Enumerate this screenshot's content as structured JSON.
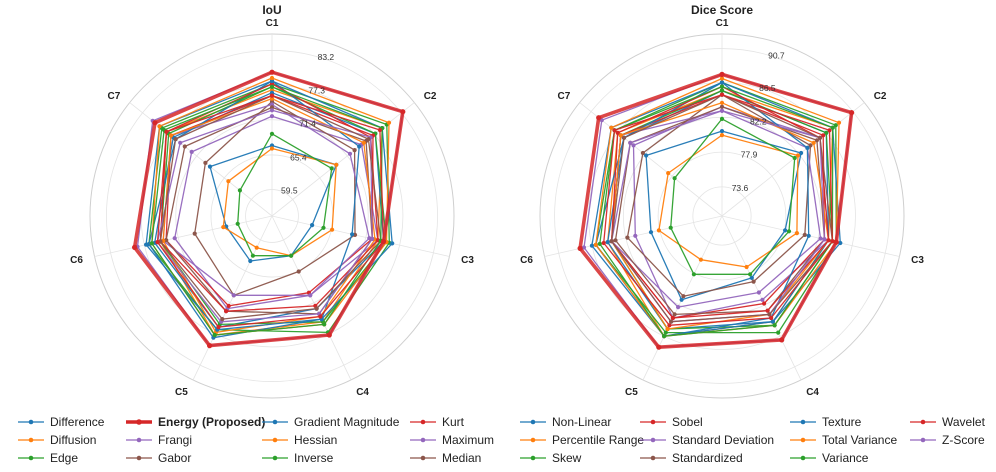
{
  "chart_data": [
    {
      "type": "radar",
      "title": "IoU",
      "axes": [
        "C1",
        "C2",
        "C3",
        "C4",
        "C5",
        "C6",
        "C7"
      ],
      "ticks": [
        59.5,
        65.4,
        71.4,
        77.3,
        83.2
      ],
      "range": [
        55.0,
        86.0
      ],
      "series": [
        {
          "name": "Difference",
          "values": [
            67.0,
            69.0,
            62.0,
            62.5,
            63.5,
            63.0,
            68.5
          ]
        },
        {
          "name": "Diffusion",
          "values": [
            76.5,
            79.0,
            73.5,
            75.0,
            77.5,
            74.5,
            78.0
          ]
        },
        {
          "name": "Edge",
          "values": [
            77.5,
            80.0,
            75.5,
            77.0,
            76.5,
            76.5,
            79.0
          ]
        },
        {
          "name": "Energy (Proposed)",
          "values": [
            79.5,
            83.5,
            74.5,
            77.5,
            79.5,
            79.0,
            80.5
          ]
        },
        {
          "name": "Frangi",
          "values": [
            72.0,
            74.5,
            73.5,
            70.0,
            72.5,
            72.0,
            72.5
          ]
        },
        {
          "name": "Gabor",
          "values": [
            74.5,
            73.0,
            69.5,
            65.5,
            70.0,
            68.5,
            69.5
          ]
        },
        {
          "name": "Gradient Magnitude",
          "values": [
            76.0,
            77.5,
            74.5,
            72.5,
            76.0,
            75.5,
            76.5
          ]
        },
        {
          "name": "Hessian",
          "values": [
            66.5,
            69.0,
            65.5,
            62.5,
            61.0,
            63.5,
            64.5
          ]
        },
        {
          "name": "Inverse",
          "values": [
            77.0,
            77.5,
            75.0,
            75.0,
            75.5,
            74.5,
            77.5
          ]
        },
        {
          "name": "Kurt",
          "values": [
            75.5,
            77.0,
            72.5,
            69.5,
            72.0,
            73.5,
            77.0
          ]
        },
        {
          "name": "Maximum",
          "values": [
            74.0,
            72.0,
            72.0,
            70.0,
            70.0,
            74.0,
            77.0
          ]
        },
        {
          "name": "Median",
          "values": [
            73.5,
            75.5,
            72.5,
            73.5,
            73.0,
            73.5,
            74.0
          ]
        },
        {
          "name": "Non-Linear",
          "values": [
            78.0,
            74.0,
            69.0,
            74.5,
            78.0,
            76.5,
            76.0
          ]
        },
        {
          "name": "Percentile Range",
          "values": [
            75.0,
            75.0,
            73.0,
            74.0,
            77.0,
            74.0,
            77.0
          ]
        },
        {
          "name": "Skew",
          "values": [
            69.0,
            68.0,
            64.0,
            62.5,
            62.5,
            61.0,
            62.0
          ]
        },
        {
          "name": "Sobel",
          "values": [
            77.5,
            76.5,
            73.5,
            72.0,
            73.0,
            74.5,
            78.0
          ]
        },
        {
          "name": "Standard Deviation",
          "values": [
            73.0,
            76.5,
            72.5,
            73.5,
            75.0,
            75.0,
            75.0
          ]
        },
        {
          "name": "Standardized",
          "values": [
            75.5,
            76.0,
            74.0,
            72.5,
            74.5,
            74.5,
            76.0
          ]
        },
        {
          "name": "Texture",
          "values": [
            78.0,
            79.0,
            76.0,
            74.5,
            76.5,
            77.0,
            79.5
          ]
        },
        {
          "name": "Total Variance",
          "values": [
            78.5,
            80.5,
            75.0,
            75.5,
            77.5,
            76.0,
            79.5
          ]
        },
        {
          "name": "Variance",
          "values": [
            77.0,
            79.0,
            74.0,
            75.5,
            77.5,
            76.0,
            78.5
          ]
        },
        {
          "name": "Wavelet",
          "values": [
            75.5,
            78.5,
            74.5,
            74.0,
            76.0,
            75.0,
            78.0
          ]
        },
        {
          "name": "Z-Score",
          "values": [
            79.5,
            83.5,
            74.5,
            77.5,
            79.5,
            78.5,
            81.0
          ]
        }
      ]
    },
    {
      "type": "radar",
      "title": "Dice Score",
      "axes": [
        "C1",
        "C2",
        "C3",
        "C4",
        "C5",
        "C6",
        "C7"
      ],
      "ticks": [
        73.6,
        77.9,
        82.2,
        86.5,
        90.7
      ],
      "range": [
        70.0,
        92.5
      ],
      "series": [
        {
          "name": "Difference",
          "values": [
            80.5,
            82.5,
            78.0,
            78.5,
            81.5,
            79.0,
            82.0
          ]
        },
        {
          "name": "Diffusion",
          "values": [
            85.5,
            87.5,
            83.5,
            84.5,
            86.5,
            84.5,
            86.5
          ]
        },
        {
          "name": "Edge",
          "values": [
            86.5,
            88.0,
            84.5,
            86.0,
            86.0,
            86.0,
            87.0
          ]
        },
        {
          "name": "Energy (Proposed)",
          "values": [
            87.5,
            90.5,
            84.5,
            87.0,
            88.0,
            88.0,
            89.5
          ]
        },
        {
          "name": "Frangi",
          "values": [
            83.5,
            85.5,
            83.5,
            81.5,
            84.0,
            81.0,
            84.0
          ]
        },
        {
          "name": "Gabor",
          "values": [
            85.0,
            84.0,
            80.5,
            79.0,
            81.0,
            82.0,
            82.5
          ]
        },
        {
          "name": "Gradient Magnitude",
          "values": [
            85.5,
            86.5,
            83.5,
            84.5,
            85.5,
            84.5,
            85.5
          ]
        },
        {
          "name": "Hessian",
          "values": [
            80.0,
            82.0,
            79.5,
            77.0,
            76.0,
            78.0,
            78.5
          ]
        },
        {
          "name": "Inverse",
          "values": [
            85.5,
            86.5,
            84.0,
            85.0,
            85.5,
            84.0,
            86.0
          ]
        },
        {
          "name": "Kurt",
          "values": [
            85.0,
            86.0,
            83.0,
            82.0,
            84.0,
            84.0,
            86.0
          ]
        },
        {
          "name": "Maximum",
          "values": [
            83.0,
            83.5,
            82.5,
            80.5,
            82.5,
            84.0,
            86.0
          ]
        },
        {
          "name": "Median",
          "values": [
            83.5,
            85.0,
            83.0,
            83.0,
            83.5,
            83.5,
            84.5
          ]
        },
        {
          "name": "Non-Linear",
          "values": [
            86.5,
            83.5,
            81.0,
            84.0,
            86.5,
            86.0,
            85.5
          ]
        },
        {
          "name": "Percentile Range",
          "values": [
            84.0,
            84.5,
            83.5,
            83.5,
            85.5,
            84.0,
            86.0
          ]
        },
        {
          "name": "Skew",
          "values": [
            82.0,
            81.5,
            78.5,
            78.0,
            78.0,
            76.5,
            77.5
          ]
        },
        {
          "name": "Sobel",
          "values": [
            86.0,
            85.5,
            83.5,
            83.0,
            84.0,
            84.0,
            86.5
          ]
        },
        {
          "name": "Standard Deviation",
          "values": [
            83.0,
            85.5,
            83.0,
            83.5,
            84.5,
            84.0,
            84.5
          ]
        },
        {
          "name": "Standardized",
          "values": [
            85.0,
            85.5,
            84.0,
            83.5,
            84.5,
            84.0,
            85.5
          ]
        },
        {
          "name": "Texture",
          "values": [
            86.5,
            87.5,
            85.0,
            84.5,
            86.5,
            86.5,
            87.5
          ]
        },
        {
          "name": "Total Variance",
          "values": [
            87.0,
            88.5,
            84.5,
            85.0,
            86.5,
            86.0,
            87.5
          ]
        },
        {
          "name": "Variance",
          "values": [
            86.0,
            87.5,
            84.0,
            85.0,
            86.5,
            85.5,
            87.0
          ]
        },
        {
          "name": "Wavelet",
          "values": [
            85.0,
            87.0,
            84.0,
            84.0,
            85.0,
            85.0,
            87.0
          ]
        },
        {
          "name": "Z-Score",
          "values": [
            87.5,
            90.5,
            84.5,
            87.0,
            88.0,
            87.5,
            89.0
          ]
        }
      ]
    }
  ],
  "colors": {
    "Difference": "#1f77b4",
    "Diffusion": "#ff7f0e",
    "Edge": "#2ca02c",
    "Energy (Proposed)": "#d62728",
    "Frangi": "#9467bd",
    "Gabor": "#8c564b",
    "Gradient Magnitude": "#1f77b4",
    "Hessian": "#ff7f0e",
    "Inverse": "#2ca02c",
    "Kurt": "#d62728",
    "Maximum": "#9467bd",
    "Median": "#8c564b",
    "Non-Linear": "#1f77b4",
    "Percentile Range": "#ff7f0e",
    "Skew": "#2ca02c",
    "Sobel": "#d62728",
    "Standard Deviation": "#9467bd",
    "Standardized": "#8c564b",
    "Texture": "#1f77b4",
    "Total Variance": "#ff7f0e",
    "Variance": "#2ca02c",
    "Wavelet": "#d62728",
    "Z-Score": "#9467bd"
  },
  "highlight": "Energy (Proposed)",
  "legend": {
    "placement": "bottom",
    "columns": 8,
    "entries": [
      "Difference",
      "Diffusion",
      "Edge",
      "Energy (Proposed)",
      "Frangi",
      "Gabor",
      "Gradient Magnitude",
      "Hessian",
      "Inverse",
      "Kurt",
      "Maximum",
      "Median",
      "Non-Linear",
      "Percentile Range",
      "Skew",
      "Sobel",
      "Standard Deviation",
      "Standardized",
      "Texture",
      "Total Variance",
      "Variance",
      "Wavelet",
      "Z-Score"
    ]
  }
}
